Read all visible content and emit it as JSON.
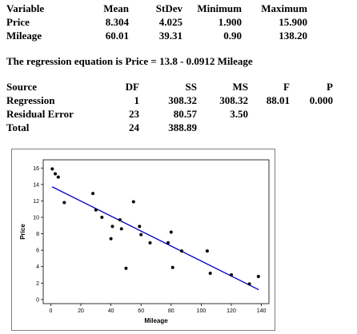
{
  "stats": {
    "headers": [
      "Variable",
      "Mean",
      "StDev",
      "Minimum",
      "Maximum"
    ],
    "rows": [
      [
        "Price",
        "8.304",
        "4.025",
        "1.900",
        "15.900"
      ],
      [
        "Mileage",
        "60.01",
        "39.31",
        "0.90",
        "138.20"
      ]
    ]
  },
  "regression_equation": "The regression equation is Price = 13.8 - 0.0912 Mileage",
  "anova": {
    "headers": [
      "Source",
      "DF",
      "SS",
      "MS",
      "F",
      "P"
    ],
    "rows": [
      [
        "Regression",
        "1",
        "308.32",
        "308.32",
        "88.01",
        "0.000"
      ],
      [
        "Residual Error",
        "23",
        "80.57",
        "3.50",
        "",
        ""
      ],
      [
        "Total",
        "24",
        "388.89",
        "",
        "",
        ""
      ]
    ]
  },
  "colors": {
    "fit_line": "#0000cc",
    "points": "#000000",
    "frame": "#808080"
  },
  "chart_data": {
    "type": "scatter",
    "xlabel": "Mileage",
    "ylabel": "Price",
    "xlim": [
      -5,
      145
    ],
    "ylim": [
      -0.5,
      17
    ],
    "xticks": [
      0,
      20,
      40,
      60,
      80,
      100,
      120,
      140
    ],
    "yticks": [
      0,
      2,
      4,
      6,
      8,
      10,
      12,
      14,
      16
    ],
    "grid": false,
    "points": [
      {
        "x": 1,
        "y": 15.9
      },
      {
        "x": 3,
        "y": 15.3
      },
      {
        "x": 5,
        "y": 14.9
      },
      {
        "x": 9,
        "y": 11.8
      },
      {
        "x": 28,
        "y": 12.9
      },
      {
        "x": 30,
        "y": 10.9
      },
      {
        "x": 34,
        "y": 10.0
      },
      {
        "x": 40,
        "y": 7.4
      },
      {
        "x": 41,
        "y": 8.9
      },
      {
        "x": 46,
        "y": 9.7
      },
      {
        "x": 47,
        "y": 8.6
      },
      {
        "x": 50,
        "y": 3.8
      },
      {
        "x": 55,
        "y": 11.9
      },
      {
        "x": 59,
        "y": 8.9
      },
      {
        "x": 60,
        "y": 7.9
      },
      {
        "x": 66,
        "y": 6.9
      },
      {
        "x": 78,
        "y": 6.9
      },
      {
        "x": 80,
        "y": 8.2
      },
      {
        "x": 81,
        "y": 3.9
      },
      {
        "x": 87,
        "y": 5.9
      },
      {
        "x": 104,
        "y": 5.9
      },
      {
        "x": 106,
        "y": 3.2
      },
      {
        "x": 120,
        "y": 3.0
      },
      {
        "x": 132,
        "y": 1.9
      },
      {
        "x": 138,
        "y": 2.8
      }
    ],
    "fit_line": {
      "intercept": 13.8,
      "slope": -0.0912,
      "x_range": [
        0.9,
        138.2
      ]
    }
  }
}
